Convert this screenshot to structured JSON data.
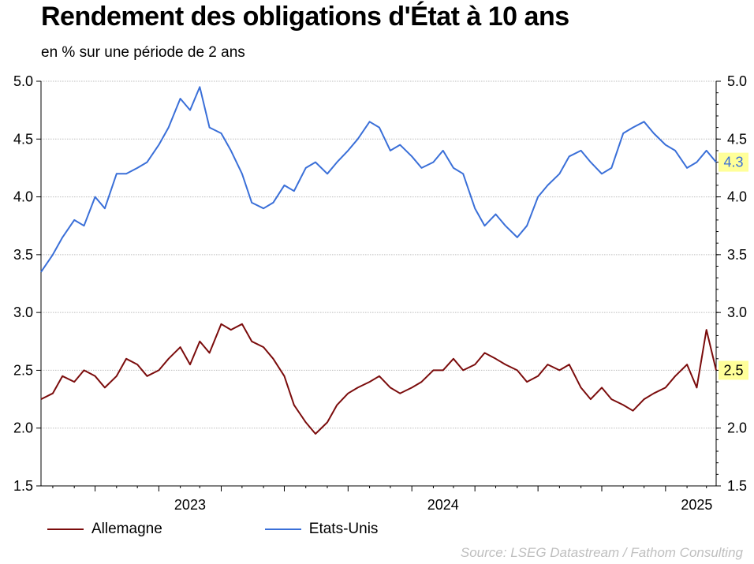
{
  "chart_data": {
    "type": "line",
    "title": "Rendement des obligations d'État à 10 ans",
    "subtitle": "en % sur une période de 2 ans",
    "xlabel": "",
    "ylabel": "",
    "ylim": [
      1.5,
      5.0
    ],
    "yticks": [
      "1.5",
      "2.0",
      "2.5",
      "3.0",
      "3.5",
      "4.0",
      "4.5",
      "5.0"
    ],
    "xticks": [
      "2023",
      "2024",
      "2025"
    ],
    "x_range": [
      "2022-07-15",
      "2025-03-15"
    ],
    "grid": true,
    "legend_position": "bottom-left",
    "source": "Source: LSEG Datastream / Fathom Consulting",
    "series": [
      {
        "name": "Allemagne",
        "color": "#7b0c0c",
        "last_value_label": "2.5",
        "x": [
          "2022-07-15",
          "2022-08-01",
          "2022-08-15",
          "2022-09-01",
          "2022-09-15",
          "2022-10-01",
          "2022-10-15",
          "2022-11-01",
          "2022-11-15",
          "2022-12-01",
          "2022-12-15",
          "2023-01-01",
          "2023-01-15",
          "2023-02-01",
          "2023-02-15",
          "2023-03-01",
          "2023-03-15",
          "2023-04-01",
          "2023-04-15",
          "2023-05-01",
          "2023-05-15",
          "2023-06-01",
          "2023-06-15",
          "2023-07-01",
          "2023-07-15",
          "2023-08-01",
          "2023-08-15",
          "2023-09-01",
          "2023-09-15",
          "2023-10-01",
          "2023-10-15",
          "2023-11-01",
          "2023-11-15",
          "2023-12-01",
          "2023-12-15",
          "2024-01-01",
          "2024-01-15",
          "2024-02-01",
          "2024-02-15",
          "2024-03-01",
          "2024-03-15",
          "2024-04-01",
          "2024-04-15",
          "2024-05-01",
          "2024-05-15",
          "2024-06-01",
          "2024-06-15",
          "2024-07-01",
          "2024-07-15",
          "2024-08-01",
          "2024-08-15",
          "2024-09-01",
          "2024-09-15",
          "2024-10-01",
          "2024-10-15",
          "2024-11-01",
          "2024-11-15",
          "2024-12-01",
          "2024-12-15",
          "2025-01-01",
          "2025-01-15",
          "2025-02-01",
          "2025-02-15",
          "2025-03-01",
          "2025-03-15"
        ],
        "values": [
          2.25,
          2.3,
          2.45,
          2.4,
          2.5,
          2.45,
          2.35,
          2.45,
          2.6,
          2.55,
          2.45,
          2.5,
          2.6,
          2.7,
          2.55,
          2.75,
          2.65,
          2.9,
          2.85,
          2.9,
          2.75,
          2.7,
          2.6,
          2.45,
          2.2,
          2.05,
          1.95,
          2.05,
          2.2,
          2.3,
          2.35,
          2.4,
          2.45,
          2.35,
          2.3,
          2.35,
          2.4,
          2.5,
          2.5,
          2.6,
          2.5,
          2.55,
          2.65,
          2.6,
          2.55,
          2.5,
          2.4,
          2.45,
          2.55,
          2.5,
          2.55,
          2.35,
          2.25,
          2.35,
          2.25,
          2.2,
          2.15,
          2.25,
          2.3,
          2.35,
          2.45,
          2.55,
          2.35,
          2.85,
          2.5
        ]
      },
      {
        "name": "Etats-Unis",
        "color": "#3a6fd8",
        "last_value_label": "4.3",
        "x": [
          "2022-07-15",
          "2022-08-01",
          "2022-08-15",
          "2022-09-01",
          "2022-09-15",
          "2022-10-01",
          "2022-10-15",
          "2022-11-01",
          "2022-11-15",
          "2022-12-01",
          "2022-12-15",
          "2023-01-01",
          "2023-01-15",
          "2023-02-01",
          "2023-02-15",
          "2023-03-01",
          "2023-03-15",
          "2023-04-01",
          "2023-04-15",
          "2023-05-01",
          "2023-05-15",
          "2023-06-01",
          "2023-06-15",
          "2023-07-01",
          "2023-07-15",
          "2023-08-01",
          "2023-08-15",
          "2023-09-01",
          "2023-09-15",
          "2023-10-01",
          "2023-10-15",
          "2023-11-01",
          "2023-11-15",
          "2023-12-01",
          "2023-12-15",
          "2024-01-01",
          "2024-01-15",
          "2024-02-01",
          "2024-02-15",
          "2024-03-01",
          "2024-03-15",
          "2024-04-01",
          "2024-04-15",
          "2024-05-01",
          "2024-05-15",
          "2024-06-01",
          "2024-06-15",
          "2024-07-01",
          "2024-07-15",
          "2024-08-01",
          "2024-08-15",
          "2024-09-01",
          "2024-09-15",
          "2024-10-01",
          "2024-10-15",
          "2024-11-01",
          "2024-11-15",
          "2024-12-01",
          "2024-12-15",
          "2025-01-01",
          "2025-01-15",
          "2025-02-01",
          "2025-02-15",
          "2025-03-01",
          "2025-03-15"
        ],
        "values": [
          3.35,
          3.5,
          3.65,
          3.8,
          3.75,
          4.0,
          3.9,
          4.2,
          4.2,
          4.25,
          4.3,
          4.45,
          4.6,
          4.85,
          4.75,
          4.95,
          4.6,
          4.55,
          4.4,
          4.2,
          3.95,
          3.9,
          3.95,
          4.1,
          4.05,
          4.25,
          4.3,
          4.2,
          4.3,
          4.4,
          4.5,
          4.65,
          4.6,
          4.4,
          4.45,
          4.35,
          4.25,
          4.3,
          4.4,
          4.25,
          4.2,
          3.9,
          3.75,
          3.85,
          3.75,
          3.65,
          3.75,
          4.0,
          4.1,
          4.2,
          4.35,
          4.4,
          4.3,
          4.2,
          4.25,
          4.55,
          4.6,
          4.65,
          4.55,
          4.45,
          4.4,
          4.25,
          4.3,
          4.4,
          4.3
        ]
      }
    ]
  }
}
